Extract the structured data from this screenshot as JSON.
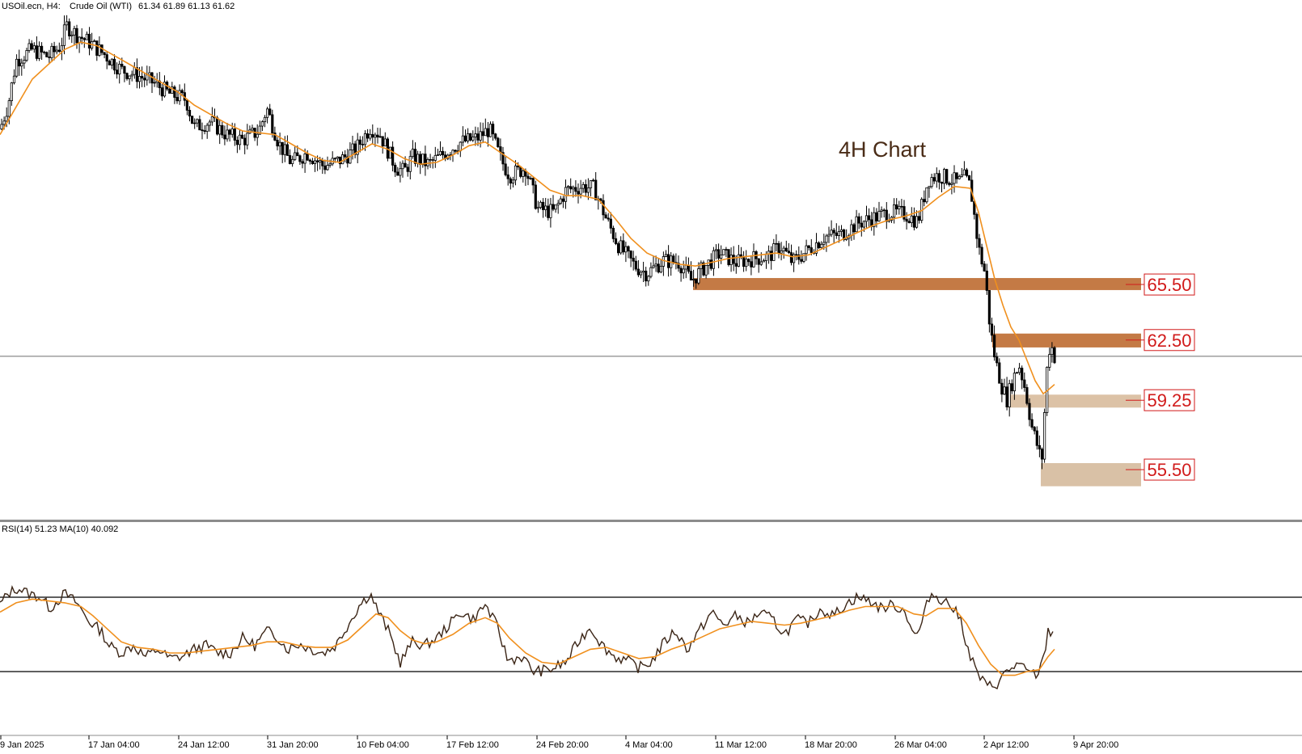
{
  "header": {
    "symbol": "USOil.ecn, H4:",
    "instrument": "Crude Oil (WTI)",
    "ohlc": "61.34 61.89 61.13 61.62"
  },
  "rsi_header": "RSI(14) 51.23 MA(10) 40.092",
  "chart_data": [
    {
      "type": "candlestick",
      "title": "4H Chart",
      "instrument": "Crude Oil (WTI)",
      "timeframe": "H4",
      "ohlc_last": {
        "open": 61.34,
        "high": 61.89,
        "low": 61.13,
        "close": 61.62
      },
      "x_ticks": [
        "9 Jan 2025",
        "17 Jan 04:00",
        "24 Jan 12:00",
        "31 Jan 20:00",
        "10 Feb 04:00",
        "17 Feb 12:00",
        "24 Feb 20:00",
        "4 Mar 04:00",
        "11 Mar 12:00",
        "18 Mar 20:00",
        "26 Mar 04:00",
        "2 Apr 12:00",
        "9 Apr 20:00"
      ],
      "ylim": [
        53.8,
        80.0
      ],
      "price_path": [
        [
          0,
          73.9
        ],
        [
          10,
          75.2
        ],
        [
          20,
          77.6
        ],
        [
          40,
          78.2
        ],
        [
          60,
          77.8
        ],
        [
          75,
          78.4
        ],
        [
          82,
          79.5
        ],
        [
          95,
          79.0
        ],
        [
          110,
          78.6
        ],
        [
          130,
          77.9
        ],
        [
          150,
          77.1
        ],
        [
          170,
          76.8
        ],
        [
          190,
          76.4
        ],
        [
          210,
          75.8
        ],
        [
          230,
          75.5
        ],
        [
          240,
          74.0
        ],
        [
          260,
          74.3
        ],
        [
          280,
          73.6
        ],
        [
          300,
          73.3
        ],
        [
          320,
          73.8
        ],
        [
          330,
          75.0
        ],
        [
          345,
          73.1
        ],
        [
          360,
          72.1
        ],
        [
          380,
          72.6
        ],
        [
          400,
          71.9
        ],
        [
          420,
          72.2
        ],
        [
          440,
          72.8
        ],
        [
          458,
          74.0
        ],
        [
          470,
          73.6
        ],
        [
          490,
          71.8
        ],
        [
          500,
          71.6
        ],
        [
          510,
          72.4
        ],
        [
          530,
          72.0
        ],
        [
          550,
          72.6
        ],
        [
          570,
          73.2
        ],
        [
          590,
          73.4
        ],
        [
          605,
          73.9
        ],
        [
          620,
          72.2
        ],
        [
          630,
          71.4
        ],
        [
          650,
          71.8
        ],
        [
          665,
          69.6
        ],
        [
          685,
          69.4
        ],
        [
          700,
          70.6
        ],
        [
          720,
          70.8
        ],
        [
          735,
          70.7
        ],
        [
          750,
          69.0
        ],
        [
          765,
          67.6
        ],
        [
          785,
          66.5
        ],
        [
          800,
          66.1
        ],
        [
          820,
          66.8
        ],
        [
          840,
          66.7
        ],
        [
          855,
          65.7
        ],
        [
          870,
          66.4
        ],
        [
          890,
          67.2
        ],
        [
          910,
          66.7
        ],
        [
          930,
          66.9
        ],
        [
          950,
          67.0
        ],
        [
          965,
          67.6
        ],
        [
          980,
          66.7
        ],
        [
          1000,
          67.4
        ],
        [
          1020,
          68.1
        ],
        [
          1040,
          68.2
        ],
        [
          1060,
          68.8
        ],
        [
          1080,
          69.1
        ],
        [
          1100,
          69.4
        ],
        [
          1120,
          69.3
        ],
        [
          1135,
          68.9
        ],
        [
          1148,
          71.2
        ],
        [
          1160,
          71.4
        ],
        [
          1175,
          71.2
        ],
        [
          1185,
          71.0
        ],
        [
          1192,
          71.3
        ],
        [
          1200,
          70.8
        ],
        [
          1210,
          67.5
        ],
        [
          1218,
          66.1
        ],
        [
          1224,
          63.3
        ],
        [
          1230,
          61.6
        ],
        [
          1238,
          60.1
        ],
        [
          1245,
          59.3
        ],
        [
          1252,
          60.3
        ],
        [
          1260,
          61.2
        ],
        [
          1268,
          59.8
        ],
        [
          1276,
          57.8
        ],
        [
          1284,
          56.6
        ],
        [
          1288,
          55.8
        ],
        [
          1292,
          58.9
        ],
        [
          1296,
          61.9
        ],
        [
          1300,
          62.2
        ],
        [
          1304,
          61.6
        ]
      ],
      "ma_path": [
        [
          0,
          73.6
        ],
        [
          20,
          75.1
        ],
        [
          40,
          76.6
        ],
        [
          60,
          77.4
        ],
        [
          80,
          78.2
        ],
        [
          100,
          78.6
        ],
        [
          120,
          78.4
        ],
        [
          140,
          77.9
        ],
        [
          160,
          77.4
        ],
        [
          180,
          76.9
        ],
        [
          200,
          76.4
        ],
        [
          220,
          75.9
        ],
        [
          240,
          75.2
        ],
        [
          260,
          74.7
        ],
        [
          280,
          74.2
        ],
        [
          300,
          73.8
        ],
        [
          320,
          73.7
        ],
        [
          340,
          73.6
        ],
        [
          360,
          73.1
        ],
        [
          380,
          72.6
        ],
        [
          400,
          72.2
        ],
        [
          420,
          72.1
        ],
        [
          440,
          72.6
        ],
        [
          460,
          73.1
        ],
        [
          480,
          72.8
        ],
        [
          500,
          72.3
        ],
        [
          520,
          72.0
        ],
        [
          540,
          72.1
        ],
        [
          560,
          72.5
        ],
        [
          580,
          73.0
        ],
        [
          600,
          73.2
        ],
        [
          620,
          72.6
        ],
        [
          640,
          72.0
        ],
        [
          660,
          71.3
        ],
        [
          680,
          70.6
        ],
        [
          700,
          70.3
        ],
        [
          720,
          70.3
        ],
        [
          740,
          70.1
        ],
        [
          760,
          69.1
        ],
        [
          780,
          68.0
        ],
        [
          800,
          67.2
        ],
        [
          820,
          66.8
        ],
        [
          840,
          66.6
        ],
        [
          860,
          66.5
        ],
        [
          880,
          66.7
        ],
        [
          900,
          66.9
        ],
        [
          920,
          67.0
        ],
        [
          940,
          67.1
        ],
        [
          960,
          67.2
        ],
        [
          980,
          67.0
        ],
        [
          1000,
          67.1
        ],
        [
          1020,
          67.5
        ],
        [
          1040,
          67.9
        ],
        [
          1060,
          68.3
        ],
        [
          1080,
          68.7
        ],
        [
          1100,
          69.0
        ],
        [
          1120,
          69.2
        ],
        [
          1140,
          69.5
        ],
        [
          1160,
          70.2
        ],
        [
          1180,
          70.8
        ],
        [
          1200,
          70.7
        ],
        [
          1210,
          69.4
        ],
        [
          1220,
          67.6
        ],
        [
          1230,
          65.8
        ],
        [
          1240,
          64.4
        ],
        [
          1250,
          63.2
        ],
        [
          1260,
          62.5
        ],
        [
          1270,
          61.4
        ],
        [
          1280,
          60.3
        ],
        [
          1290,
          59.6
        ],
        [
          1296,
          59.8
        ],
        [
          1304,
          60.1
        ]
      ],
      "levels": [
        {
          "label": "65.50",
          "value": 65.5,
          "zone": [
            65.2,
            65.85
          ],
          "color": "#c47a45",
          "x_from": 857
        },
        {
          "label": "62.50",
          "value": 62.5,
          "zone": [
            62.1,
            62.85
          ],
          "color": "#c47a45",
          "x_from": 1227
        },
        {
          "label": "59.25",
          "value": 59.25,
          "zone": [
            58.85,
            59.55
          ],
          "color": "#dcc2a6",
          "x_from": 1245
        },
        {
          "label": "55.50",
          "value": 55.5,
          "zone": [
            54.6,
            55.85
          ],
          "color": "#d9c1a6",
          "x_from": 1287
        }
      ],
      "current_price_line": 61.62
    },
    {
      "type": "line",
      "indicator": "RSI(14)",
      "rsi_value": 51.23,
      "ma_label": "MA(10)",
      "ma_value": 40.092,
      "levels": [
        70,
        30
      ],
      "ylim": [
        0,
        100
      ],
      "rsi_path": [
        [
          0,
          66
        ],
        [
          10,
          72
        ],
        [
          22,
          75
        ],
        [
          35,
          72
        ],
        [
          50,
          70
        ],
        [
          62,
          64
        ],
        [
          80,
          72
        ],
        [
          95,
          67
        ],
        [
          110,
          57
        ],
        [
          125,
          52
        ],
        [
          135,
          44
        ],
        [
          150,
          40
        ],
        [
          165,
          44
        ],
        [
          180,
          38
        ],
        [
          195,
          42
        ],
        [
          210,
          37
        ],
        [
          225,
          38
        ],
        [
          240,
          42
        ],
        [
          255,
          44
        ],
        [
          270,
          40
        ],
        [
          285,
          40
        ],
        [
          300,
          48
        ],
        [
          315,
          44
        ],
        [
          330,
          52
        ],
        [
          345,
          48
        ],
        [
          355,
          42
        ],
        [
          370,
          45
        ],
        [
          385,
          42
        ],
        [
          400,
          40
        ],
        [
          415,
          44
        ],
        [
          430,
          55
        ],
        [
          445,
          66
        ],
        [
          458,
          72
        ],
        [
          468,
          62
        ],
        [
          480,
          52
        ],
        [
          495,
          35
        ],
        [
          510,
          46
        ],
        [
          525,
          44
        ],
        [
          540,
          48
        ],
        [
          555,
          55
        ],
        [
          570,
          62
        ],
        [
          585,
          58
        ],
        [
          600,
          66
        ],
        [
          615,
          54
        ],
        [
          628,
          36
        ],
        [
          645,
          38
        ],
        [
          660,
          30
        ],
        [
          680,
          31
        ],
        [
          700,
          35
        ],
        [
          715,
          46
        ],
        [
          730,
          54
        ],
        [
          745,
          44
        ],
        [
          760,
          38
        ],
        [
          775,
          36
        ],
        [
          790,
          32
        ],
        [
          805,
          35
        ],
        [
          820,
          45
        ],
        [
          835,
          52
        ],
        [
          850,
          42
        ],
        [
          865,
          52
        ],
        [
          880,
          62
        ],
        [
          895,
          55
        ],
        [
          910,
          60
        ],
        [
          925,
          56
        ],
        [
          940,
          62
        ],
        [
          955,
          58
        ],
        [
          970,
          50
        ],
        [
          985,
          58
        ],
        [
          1000,
          56
        ],
        [
          1015,
          64
        ],
        [
          1030,
          60
        ],
        [
          1045,
          66
        ],
        [
          1060,
          70
        ],
        [
          1075,
          68
        ],
        [
          1090,
          64
        ],
        [
          1105,
          66
        ],
        [
          1120,
          62
        ],
        [
          1132,
          48
        ],
        [
          1140,
          56
        ],
        [
          1150,
          72
        ],
        [
          1160,
          70
        ],
        [
          1175,
          66
        ],
        [
          1188,
          58
        ],
        [
          1198,
          40
        ],
        [
          1210,
          28
        ],
        [
          1220,
          22
        ],
        [
          1232,
          23
        ],
        [
          1245,
          30
        ],
        [
          1258,
          34
        ],
        [
          1270,
          30
        ],
        [
          1282,
          28
        ],
        [
          1290,
          36
        ],
        [
          1296,
          52
        ],
        [
          1304,
          50
        ]
      ],
      "ma_path": [
        [
          0,
          62
        ],
        [
          20,
          67
        ],
        [
          40,
          69
        ],
        [
          60,
          68
        ],
        [
          80,
          67
        ],
        [
          100,
          65
        ],
        [
          115,
          60
        ],
        [
          130,
          54
        ],
        [
          150,
          46
        ],
        [
          170,
          43
        ],
        [
          190,
          42
        ],
        [
          210,
          40
        ],
        [
          230,
          40
        ],
        [
          250,
          41
        ],
        [
          270,
          42
        ],
        [
          290,
          43
        ],
        [
          310,
          44
        ],
        [
          330,
          46
        ],
        [
          350,
          46
        ],
        [
          370,
          44
        ],
        [
          390,
          43
        ],
        [
          410,
          43
        ],
        [
          430,
          47
        ],
        [
          450,
          55
        ],
        [
          465,
          61
        ],
        [
          480,
          59
        ],
        [
          495,
          52
        ],
        [
          510,
          47
        ],
        [
          525,
          45
        ],
        [
          540,
          46
        ],
        [
          560,
          50
        ],
        [
          580,
          56
        ],
        [
          600,
          59
        ],
        [
          615,
          56
        ],
        [
          630,
          48
        ],
        [
          650,
          40
        ],
        [
          670,
          35
        ],
        [
          690,
          34
        ],
        [
          710,
          38
        ],
        [
          730,
          42
        ],
        [
          750,
          43
        ],
        [
          770,
          40
        ],
        [
          790,
          37
        ],
        [
          810,
          38
        ],
        [
          830,
          42
        ],
        [
          850,
          45
        ],
        [
          870,
          49
        ],
        [
          890,
          53
        ],
        [
          910,
          55
        ],
        [
          930,
          57
        ],
        [
          950,
          56
        ],
        [
          970,
          55
        ],
        [
          990,
          56
        ],
        [
          1010,
          58
        ],
        [
          1030,
          60
        ],
        [
          1050,
          63
        ],
        [
          1070,
          65
        ],
        [
          1090,
          65
        ],
        [
          1110,
          65
        ],
        [
          1130,
          61
        ],
        [
          1145,
          60
        ],
        [
          1160,
          64
        ],
        [
          1180,
          64
        ],
        [
          1195,
          56
        ],
        [
          1210,
          44
        ],
        [
          1225,
          34
        ],
        [
          1240,
          28
        ],
        [
          1255,
          28
        ],
        [
          1270,
          30
        ],
        [
          1285,
          31
        ],
        [
          1296,
          38
        ],
        [
          1304,
          42
        ]
      ]
    }
  ]
}
